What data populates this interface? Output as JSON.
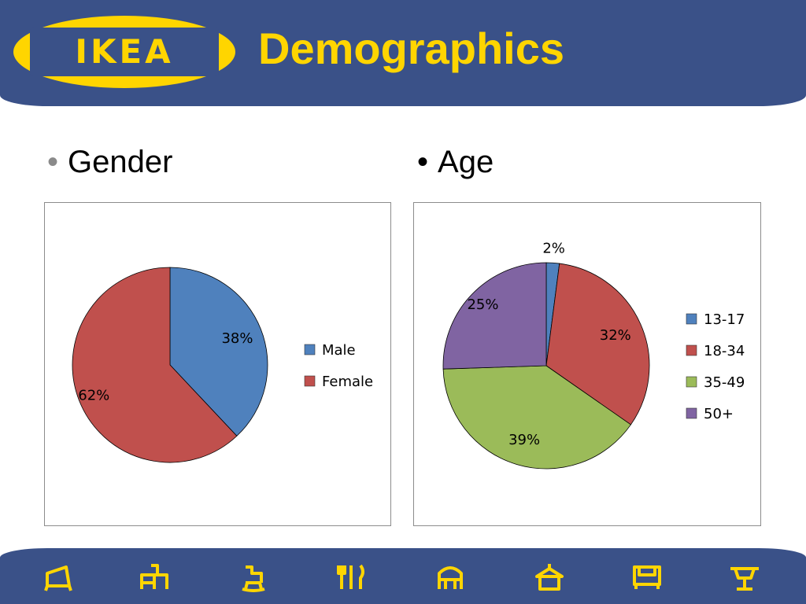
{
  "header": {
    "logo_text": "IKEA",
    "title": "Demographics"
  },
  "colors": {
    "header_blue": "#3a5188",
    "ikea_yellow": "#ffd500",
    "blue": "#4f81bd",
    "red": "#c0504d",
    "green": "#9bbb59",
    "purple": "#8064a2"
  },
  "bullets": {
    "gender": "Gender",
    "age": "Age"
  },
  "chart_data": [
    {
      "type": "pie",
      "title": "",
      "categories": [
        "Male",
        "Female"
      ],
      "values": [
        38,
        62
      ],
      "labels": [
        "38%",
        "62%"
      ],
      "colors": [
        "#4f81bd",
        "#c0504d"
      ],
      "legend": "right"
    },
    {
      "type": "pie",
      "title": "",
      "categories": [
        "13-17",
        "18-34",
        "35-49",
        "50+"
      ],
      "values": [
        2,
        32,
        39,
        25
      ],
      "labels": [
        "2%",
        "32%",
        "39%",
        "25%"
      ],
      "colors": [
        "#4f81bd",
        "#c0504d",
        "#9bbb59",
        "#8064a2"
      ],
      "legend": "right"
    }
  ],
  "footer": {
    "icons": [
      "chair-icon",
      "desk-icon",
      "rocking-horse-icon",
      "cutlery-icon",
      "armchair-icon",
      "lamp-icon",
      "sofa-icon",
      "table-icon"
    ]
  }
}
